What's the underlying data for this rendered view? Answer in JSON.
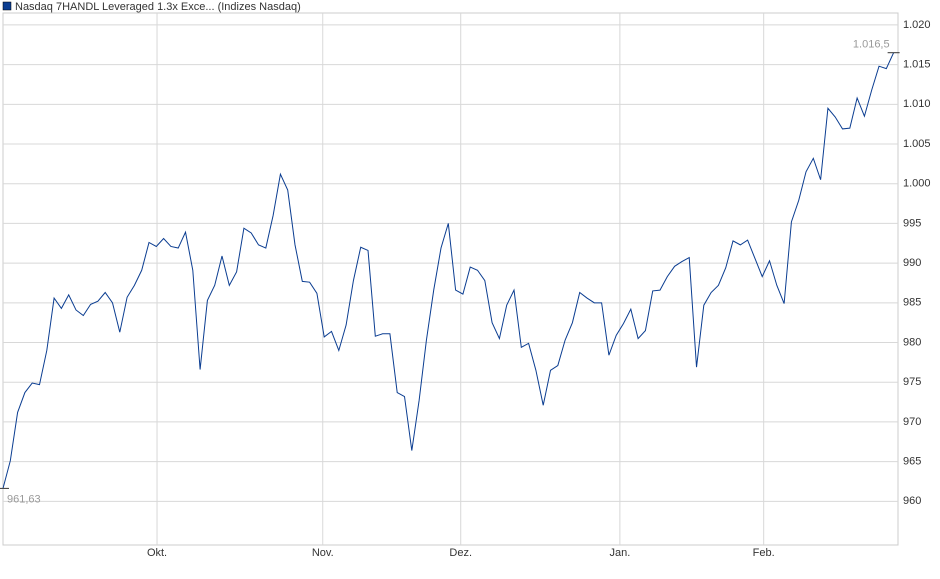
{
  "chart_data": {
    "type": "line",
    "series": [
      {
        "name": "Nasdaq 7HANDL Leveraged 1.3x Exce... (Indizes Nasdaq)",
        "color": "#0b3d91",
        "values": [
          961.63,
          965.1,
          971.2,
          973.7,
          974.9,
          974.7,
          979,
          985.6,
          984.3,
          986,
          984.1,
          983.4,
          984.8,
          985.2,
          986.3,
          985,
          981.3,
          985.7,
          987.2,
          989.1,
          992.6,
          992.1,
          993.1,
          992.1,
          991.9,
          993.9,
          989.1,
          976.6,
          985.3,
          987.2,
          990.9,
          987.2,
          988.9,
          994.4,
          993.8,
          992.3,
          991.9,
          996,
          1001.2,
          999.2,
          992.3,
          987.7,
          987.6,
          986.2,
          980.7,
          981.4,
          979,
          982.2,
          987.8,
          992,
          991.6,
          980.8,
          981.1,
          981.1,
          973.7,
          973.2,
          966.4,
          972.7,
          980.3,
          986.6,
          991.9,
          995,
          986.6,
          986.1,
          989.5,
          989.1,
          987.8,
          982.5,
          980.5,
          984.7,
          986.6,
          979.4,
          979.9,
          976.5,
          972.1,
          976.5,
          977.1,
          980.3,
          982.5,
          986.3,
          985.6,
          985,
          985,
          978.4,
          980.9,
          982.4,
          984.2,
          980.5,
          981.5,
          986.5,
          986.6,
          988.3,
          989.6,
          990.2,
          990.7,
          976.9,
          984.7,
          986.3,
          987.2,
          989.4,
          992.8,
          992.3,
          992.9,
          990.6,
          988.3,
          990.3,
          987.2,
          984.9,
          995.2,
          997.9,
          1001.5,
          1003.2,
          1000.5,
          1009.5,
          1008.4,
          1006.9,
          1007,
          1010.8,
          1008.5,
          1011.8,
          1014.8,
          1014.5,
          1016.5
        ]
      }
    ],
    "annotations": [
      {
        "x": 0,
        "y": 961.63,
        "label": "961,63"
      },
      {
        "x": 122,
        "y": 1016.5,
        "label": "1.016,5"
      }
    ],
    "xlim": [
      0,
      122.6
    ],
    "xticks": [
      {
        "value": 21.1,
        "label": "Okt."
      },
      {
        "value": 43.8,
        "label": "Nov."
      },
      {
        "value": 62.7,
        "label": "Dez."
      },
      {
        "value": 84.5,
        "label": "Jan."
      },
      {
        "value": 104.2,
        "label": "Feb."
      }
    ],
    "ylim": [
      954.5,
      1021.5
    ],
    "yticks": [
      {
        "value": 960,
        "label": "960"
      },
      {
        "value": 965,
        "label": "965"
      },
      {
        "value": 970,
        "label": "970"
      },
      {
        "value": 975,
        "label": "975"
      },
      {
        "value": 980,
        "label": "980"
      },
      {
        "value": 985,
        "label": "985"
      },
      {
        "value": 990,
        "label": "990"
      },
      {
        "value": 995,
        "label": "995"
      },
      {
        "value": 1000,
        "label": "1.000"
      },
      {
        "value": 1005,
        "label": "1.005"
      },
      {
        "value": 1010,
        "label": "1.010"
      },
      {
        "value": 1015,
        "label": "1.015"
      },
      {
        "value": 1020,
        "label": "1.020"
      }
    ],
    "grid": true
  }
}
